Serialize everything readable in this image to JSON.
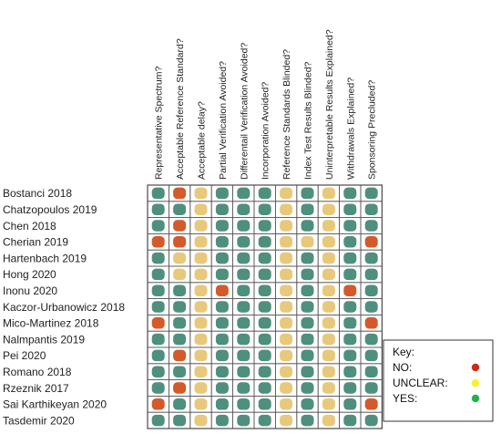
{
  "columns": [
    "Representative Spectrum?",
    "Acceptable Reference Standard?",
    "Acceptable delay?",
    "Partial Verification Avoided?",
    "Differentail Verification Avoided?",
    "Incorporation Avoided?",
    "Reference Standards Blinded?",
    "Index Test Results Blinded?",
    "Uninterpretable Results Explained?",
    "Withdrawals Explained?",
    "Sponsoring Precluded?"
  ],
  "studies": [
    "Bostanci 2018",
    "Chatzopoulos 2019",
    "Chen 2018",
    "Cherian 2019",
    "Hartenbach 2019",
    "Hong 2020",
    "Inonu 2020",
    "Kaczor-Urbanowicz 2018",
    "Mico-Martinez 2018",
    "Nalmpantis 2019",
    "Pei 2020",
    "Romano 2018",
    "Rzeznik 2017",
    "Sai Karthikeyan 2020",
    "Tasdemir 2020"
  ],
  "ratings": [
    [
      "Y",
      "N",
      "U",
      "Y",
      "Y",
      "Y",
      "U",
      "Y",
      "U",
      "Y",
      "Y"
    ],
    [
      "Y",
      "Y",
      "U",
      "Y",
      "Y",
      "Y",
      "U",
      "Y",
      "U",
      "Y",
      "Y"
    ],
    [
      "Y",
      "N",
      "U",
      "Y",
      "Y",
      "Y",
      "U",
      "Y",
      "U",
      "Y",
      "Y"
    ],
    [
      "N",
      "N",
      "U",
      "Y",
      "Y",
      "Y",
      "U",
      "U",
      "U",
      "Y",
      "N"
    ],
    [
      "Y",
      "U",
      "U",
      "Y",
      "Y",
      "Y",
      "U",
      "Y",
      "U",
      "Y",
      "Y"
    ],
    [
      "Y",
      "U",
      "U",
      "Y",
      "Y",
      "Y",
      "U",
      "Y",
      "U",
      "Y",
      "Y"
    ],
    [
      "Y",
      "Y",
      "U",
      "N",
      "Y",
      "Y",
      "U",
      "Y",
      "U",
      "N",
      "Y"
    ],
    [
      "Y",
      "Y",
      "U",
      "Y",
      "Y",
      "Y",
      "U",
      "Y",
      "U",
      "Y",
      "Y"
    ],
    [
      "N",
      "Y",
      "U",
      "Y",
      "Y",
      "Y",
      "U",
      "Y",
      "U",
      "Y",
      "N"
    ],
    [
      "Y",
      "Y",
      "U",
      "Y",
      "Y",
      "Y",
      "U",
      "Y",
      "U",
      "Y",
      "Y"
    ],
    [
      "Y",
      "N",
      "U",
      "Y",
      "Y",
      "Y",
      "U",
      "Y",
      "U",
      "Y",
      "Y"
    ],
    [
      "Y",
      "Y",
      "U",
      "Y",
      "Y",
      "Y",
      "U",
      "Y",
      "U",
      "Y",
      "Y"
    ],
    [
      "Y",
      "N",
      "U",
      "Y",
      "Y",
      "Y",
      "U",
      "Y",
      "U",
      "Y",
      "Y"
    ],
    [
      "N",
      "Y",
      "U",
      "Y",
      "Y",
      "Y",
      "U",
      "Y",
      "U",
      "Y",
      "N"
    ],
    [
      "Y",
      "Y",
      "U",
      "Y",
      "Y",
      "Y",
      "U",
      "Y",
      "U",
      "Y",
      "Y"
    ]
  ],
  "key": {
    "title": "Key:",
    "items": [
      {
        "code": "N",
        "label": "NO:"
      },
      {
        "code": "U",
        "label": "UNCLEAR:"
      },
      {
        "code": "Y",
        "label": "YES:"
      }
    ]
  },
  "colors": {
    "Y": "#4f8f7e",
    "U": "#e8c97c",
    "N": "#d35a2b",
    "key_N": "#cc2a1b",
    "key_U": "#f5f233",
    "key_Y": "#22b24c",
    "grid": "#555555"
  }
}
